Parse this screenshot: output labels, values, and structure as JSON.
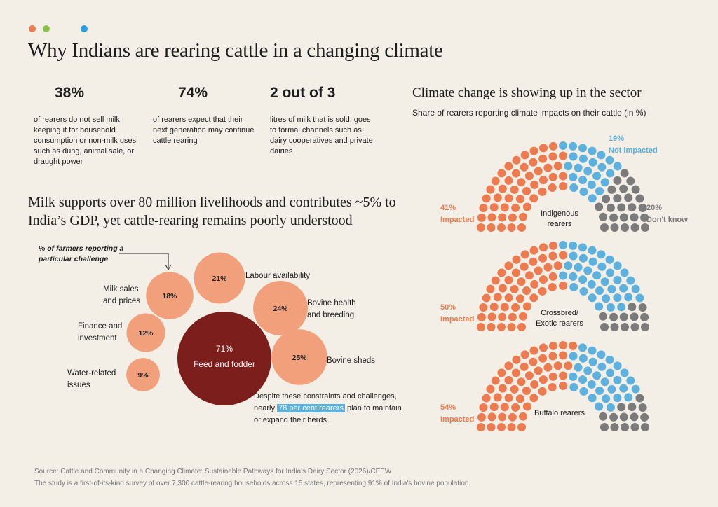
{
  "title": "Why Indians are rearing cattle in a changing climate",
  "stats": [
    {
      "value": "38%",
      "text": "of rearers do not sell milk, keeping it for household consumption or non-milk uses such as dung, animal sale, or draught power"
    },
    {
      "value": "74%",
      "text": "of rearers expect that their next generation may continue cattle rearing"
    },
    {
      "value": "2 out of 3",
      "text": "litres of milk that is sold, goes to formal channels such as dairy cooperatives and private dairies"
    }
  ],
  "subheading": "Milk supports over 80 million livelihoods and contributes ~5% to India’s GDP, yet cattle-rearing remains poorly understood",
  "chart_data": [
    {
      "type": "bubble",
      "annotation": "% of farmers reporting a particular challenge",
      "categories": [
        "Feed and fodder",
        "Labour availability",
        "Milk sales and prices",
        "Bovine health and breeding",
        "Finance and investment",
        "Bovine sheds",
        "Water-related issues"
      ],
      "values": [
        71,
        21,
        18,
        24,
        12,
        25,
        9
      ],
      "value_labels": [
        "71%",
        "21%",
        "18%",
        "24%",
        "12%",
        "25%",
        "9%"
      ],
      "colors": [
        "#7b1e1c",
        "#f2a07c",
        "#f2a07c",
        "#f2a07c",
        "#f2a07c",
        "#f2a07c",
        "#f2a07c"
      ],
      "callout": [
        "Despite these constraints and challenges, nearly ",
        "78 per cent rearers",
        " plan to maintain or expand their herds"
      ]
    },
    {
      "type": "parliament",
      "title": "Climate change is showing up in the sector",
      "subtitle": "Share of rearers reporting climate impacts on their cattle (in %)",
      "categories": [
        "Impacted",
        "Not impacted",
        "Don't know"
      ],
      "colors": [
        "#ee7b4f",
        "#5cb1de",
        "#7b7b7b"
      ],
      "series": [
        {
          "name": "Indigenous rearers",
          "values": [
            41,
            19,
            20
          ],
          "value_labels": [
            "41%",
            "19%",
            "20%"
          ]
        },
        {
          "name": "Crossbred/ Exotic rearers",
          "values": [
            50,
            38,
            12
          ],
          "value_labels": [
            "50%",
            null,
            null
          ]
        },
        {
          "name": "Buffalo rearers",
          "values": [
            54,
            32,
            14
          ],
          "value_labels": [
            "54%",
            null,
            null
          ]
        }
      ]
    }
  ],
  "source": "Source: Cattle and Community in a Changing Climate: Sustainable Pathways for India's Dairy Sector (2026)/CEEW",
  "note": "The study is a first-of-its-kind survey of over 7,300 cattle-rearing households across 15 states, representing 91% of India's bovine population."
}
